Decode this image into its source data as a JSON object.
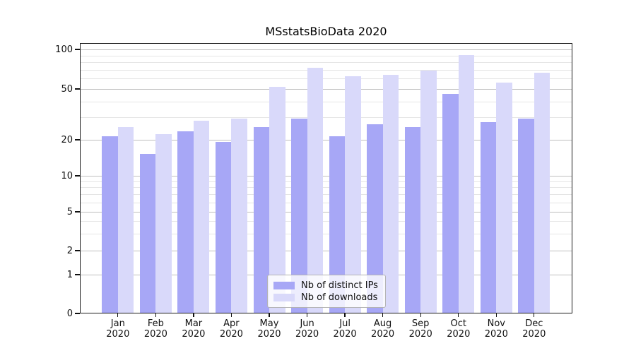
{
  "chart_data": {
    "type": "bar",
    "title": "MSstatsBioData 2020",
    "categories": [
      "Jan",
      "Feb",
      "Mar",
      "Apr",
      "May",
      "Jun",
      "Jul",
      "Aug",
      "Sep",
      "Oct",
      "Nov",
      "Dec"
    ],
    "x_tick_year": "2020",
    "series": [
      {
        "name": "Nb of distinct IPs",
        "color": "#a7a7f6",
        "values": [
          21,
          15,
          23,
          19,
          25,
          29,
          21,
          26,
          25,
          45,
          27,
          29
        ]
      },
      {
        "name": "Nb of downloads",
        "color": "#d9d9fa",
        "values": [
          25,
          22,
          28,
          29,
          51,
          72,
          62,
          63,
          68,
          90,
          55,
          66
        ]
      }
    ],
    "y_axis": {
      "scale": "log-like",
      "major_ticks": [
        0,
        1,
        2,
        5,
        10,
        20,
        50,
        100
      ],
      "minor_ticks": [
        3,
        4,
        6,
        7,
        8,
        9,
        30,
        40,
        60,
        70,
        80,
        90
      ],
      "range": [
        0,
        100
      ]
    },
    "grid": true,
    "legend_position": "bottom-center"
  }
}
